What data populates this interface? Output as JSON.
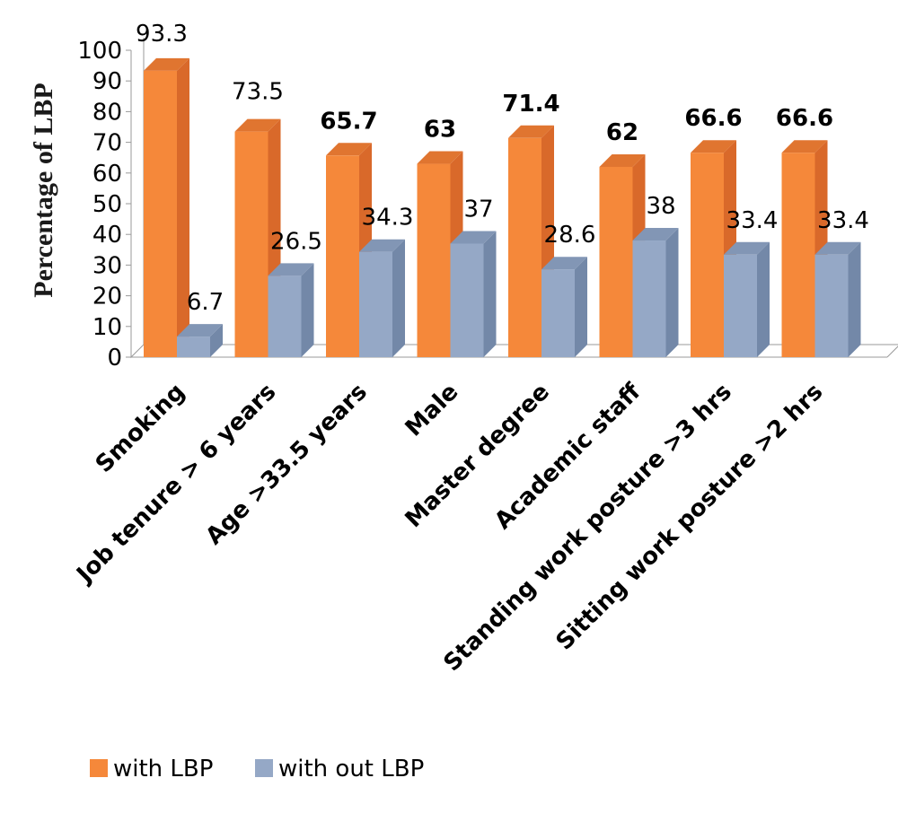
{
  "chart_data": {
    "type": "bar",
    "ylabel": "Percentage of LBP",
    "ylim": [
      0,
      100
    ],
    "yticks": [
      "0",
      "10",
      "20",
      "30",
      "40",
      "50",
      "60",
      "70",
      "80",
      "90",
      "100"
    ],
    "categories": [
      "Smoking",
      "Job tenure > 6 years",
      "Age >33.5 years",
      "Male",
      "Master degree",
      "Academic staff",
      "Standing work posture >3 hrs",
      "Sitting work posture >2 hrs"
    ],
    "series": [
      {
        "name": "with LBP",
        "color": "#f5883a",
        "side": "#d9692a",
        "top": "#e07530",
        "values": [
          93.3,
          73.5,
          65.7,
          63,
          71.4,
          62,
          66.6,
          66.6
        ],
        "labels": [
          "93.3",
          "73.5",
          "65.7",
          "63",
          "71.4",
          "62",
          "66.6",
          "66.6"
        ],
        "label_bold": [
          false,
          false,
          true,
          true,
          true,
          true,
          true,
          true
        ]
      },
      {
        "name": "with out LBP",
        "color": "#95a8c6",
        "side": "#7388a8",
        "top": "#8296b5",
        "values": [
          6.7,
          26.5,
          34.3,
          37,
          28.6,
          38,
          33.4,
          33.4
        ],
        "labels": [
          "6.7",
          "26.5",
          "34.3",
          "37",
          "28.6",
          "38",
          "33.4",
          "33.4"
        ],
        "label_bold": [
          false,
          false,
          false,
          false,
          false,
          false,
          false,
          false
        ]
      }
    ],
    "legend_position": "bottom",
    "grid": false
  }
}
